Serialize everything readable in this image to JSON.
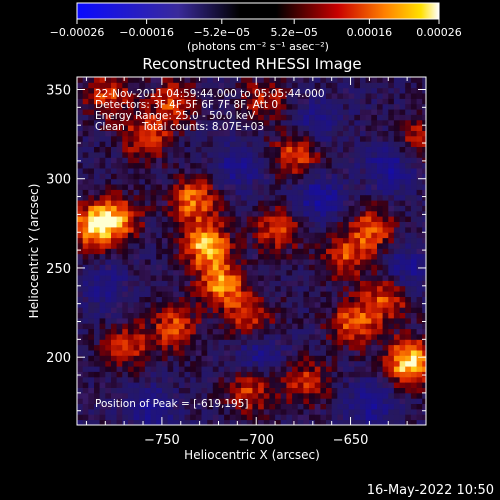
{
  "chart_data": {
    "type": "heatmap",
    "title": "Reconstructed RHESSI Image",
    "xlabel": "Heliocentric X (arcsec)",
    "ylabel": "Heliocentric Y (arcsec)",
    "xlim": [
      -795,
      -610
    ],
    "ylim": [
      162,
      357
    ],
    "xticks": [
      -750,
      -700,
      -650
    ],
    "xtick_labels": [
      "−750",
      "−700",
      "−650"
    ],
    "yticks": [
      200,
      250,
      300,
      350
    ],
    "ytick_labels": [
      "200",
      "250",
      "300",
      "350"
    ],
    "colorbar": {
      "min": -0.00026,
      "max": 0.00026,
      "ticks": [
        -0.00026,
        -0.00016,
        -5.2e-05,
        5.2e-05,
        0.00016,
        0.00026
      ],
      "tick_labels": [
        "−0.00026",
        "−0.00016",
        "−5.2e−05",
        "5.2e−05",
        "0.00016",
        "0.00026"
      ],
      "unit_label": "(photons cm⁻² s⁻¹ asec⁻²)"
    },
    "annotations": {
      "time_range": "22-Nov-2011 04:59:44.000 to 05:05:44.000",
      "detectors": "Detectors: 3F 4F 5F 6F 7F 8F, Att 0",
      "energy": "Energy Range: 25.0 - 50.0 keV",
      "clean_label": "Clean",
      "total_counts": "Total counts: 8.07E+03",
      "peak": "Position of Peak = [-619,195]"
    },
    "peak_position": [
      -619,
      195
    ],
    "image_hotspots": [
      {
        "x": -620,
        "y": 196,
        "value": 1.0
      },
      {
        "x": -728,
        "y": 262,
        "value": 0.85
      },
      {
        "x": -720,
        "y": 240,
        "value": 0.75
      },
      {
        "x": -735,
        "y": 287,
        "value": 0.7
      },
      {
        "x": -788,
        "y": 272,
        "value": 0.8
      },
      {
        "x": -775,
        "y": 276,
        "value": 0.65
      },
      {
        "x": -760,
        "y": 322,
        "value": 0.6
      },
      {
        "x": -745,
        "y": 341,
        "value": 0.55
      },
      {
        "x": -680,
        "y": 312,
        "value": 0.6
      },
      {
        "x": -690,
        "y": 270,
        "value": 0.55
      },
      {
        "x": -655,
        "y": 255,
        "value": 0.55
      },
      {
        "x": -640,
        "y": 270,
        "value": 0.6
      },
      {
        "x": -650,
        "y": 218,
        "value": 0.65
      },
      {
        "x": -632,
        "y": 232,
        "value": 0.6
      },
      {
        "x": -705,
        "y": 222,
        "value": 0.55
      },
      {
        "x": -745,
        "y": 215,
        "value": 0.6
      },
      {
        "x": -770,
        "y": 205,
        "value": 0.5
      },
      {
        "x": -705,
        "y": 180,
        "value": 0.55
      },
      {
        "x": -675,
        "y": 185,
        "value": 0.5
      },
      {
        "x": -780,
        "y": 345,
        "value": 0.55
      },
      {
        "x": -615,
        "y": 320,
        "value": 0.45
      },
      {
        "x": -697,
        "y": 343,
        "value": 0.45
      }
    ],
    "image_coldspots": [
      {
        "x": -668,
        "y": 288,
        "value": -0.55
      },
      {
        "x": -630,
        "y": 305,
        "value": -0.5
      },
      {
        "x": -622,
        "y": 248,
        "value": -0.45
      },
      {
        "x": -700,
        "y": 200,
        "value": -0.4
      },
      {
        "x": -640,
        "y": 172,
        "value": -0.45
      },
      {
        "x": -712,
        "y": 305,
        "value": -0.4
      },
      {
        "x": -757,
        "y": 170,
        "value": -0.4
      },
      {
        "x": -670,
        "y": 330,
        "value": -0.35
      },
      {
        "x": -782,
        "y": 238,
        "value": -0.35
      }
    ],
    "grid": false
  },
  "footer": {
    "datestamp": "16-May-2022 10:50"
  }
}
